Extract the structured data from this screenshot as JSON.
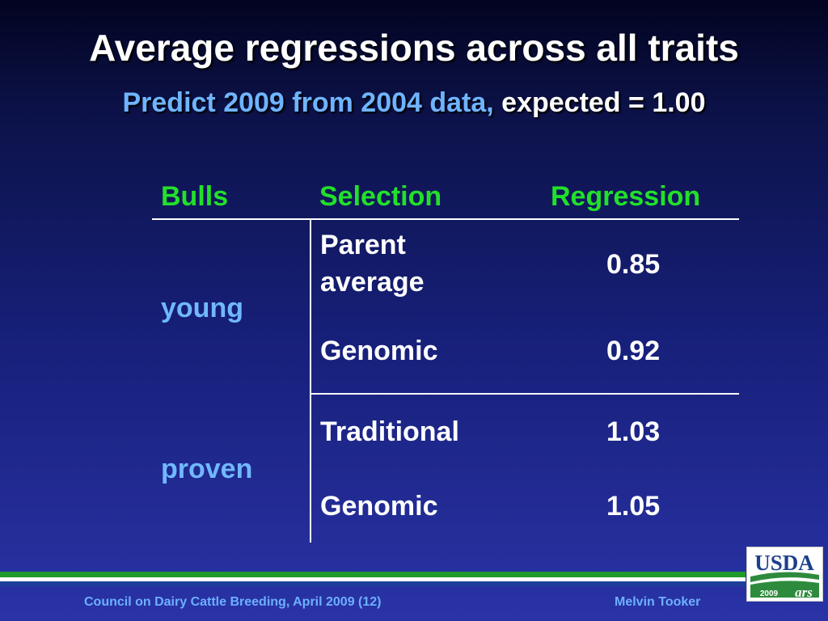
{
  "title": "Average regressions across all traits",
  "subtitle": {
    "part1": "Predict 2009 from 2004 data,",
    "part2": "expected = 1.00"
  },
  "table": {
    "headers": [
      "Bulls",
      "Selection",
      "Regression"
    ],
    "groups": [
      {
        "bulls": "young",
        "rows": [
          {
            "selection_line1": "Parent",
            "selection_line2": "average",
            "regression": "0.85"
          },
          {
            "selection": "Genomic",
            "regression": "0.92"
          }
        ]
      },
      {
        "bulls": "proven",
        "rows": [
          {
            "selection": "Traditional",
            "regression": "1.03"
          },
          {
            "selection": "Genomic",
            "regression": "1.05"
          }
        ]
      }
    ]
  },
  "footer": {
    "left": "Council on Dairy Cattle Breeding, April 2009 (12)",
    "right": "Melvin Tooker"
  },
  "logo": {
    "text": "USDA",
    "year": "2009",
    "agency": "ars",
    "colors": {
      "blue": "#1b3f8c",
      "green": "#2e8b3d"
    }
  },
  "colors": {
    "header_green": "#22e02a",
    "label_blue": "#70b8ff",
    "stripe_green": "#1f9a2a",
    "stripe_white": "#ffffff",
    "stripe_blue": "#1d3f9a"
  }
}
